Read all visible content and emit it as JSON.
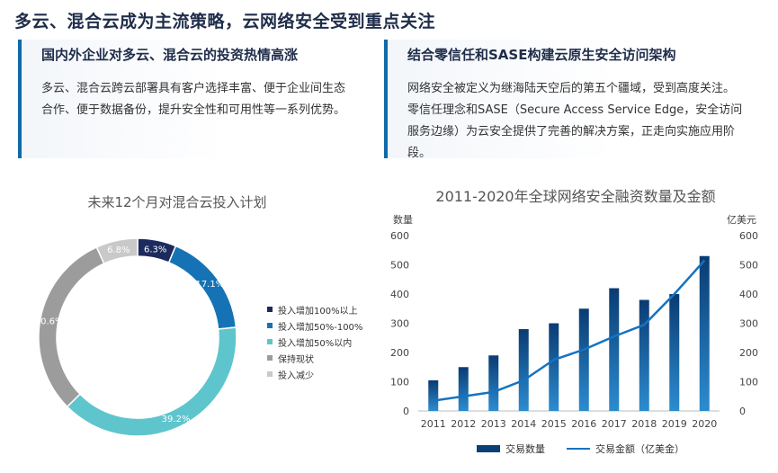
{
  "page_title": "多云、混合云成为主流策略，云网络安全受到重点关注",
  "left_panel": {
    "heading": "国内外企业对多云、混合云的投资热情高涨",
    "body": "多云、混合云跨云部署具有客户选择丰富、便于企业间生态合作、便于数据备份，提升安全性和可用性等一系列优势。"
  },
  "right_panel": {
    "heading": "结合零信任和SASE构建云原生安全访问架构",
    "body": "网络安全被定义为继海陆天空后的第五个疆域，受到高度关注。零信任理念和SASE（Secure Access Service Edge，安全访问服务边缘）为云安全提供了完善的解决方案，正走向实施应用阶段。"
  },
  "chart_data": [
    {
      "type": "pie",
      "title": "未来12个月对混合云投入计划",
      "donut": true,
      "legend_position": "right",
      "slices": [
        {
          "label": "投入增加100%以上",
          "value": 6.3,
          "display": "6.3%",
          "color": "#1c2a5e"
        },
        {
          "label": "投入增加50%-100%",
          "value": 17.1,
          "display": "17.1%",
          "color": "#1573b5"
        },
        {
          "label": "投入增加50%以内",
          "value": 39.2,
          "display": "39.2%",
          "color": "#5ec5cd"
        },
        {
          "label": "保持现状",
          "value": 30.6,
          "display": "30.6%",
          "color": "#9c9c9c"
        },
        {
          "label": "投入减少",
          "value": 6.8,
          "display": "6.8%",
          "color": "#c9c9c9"
        }
      ]
    },
    {
      "type": "bar",
      "title": "2011-2020年全球网络安全融资数量及金额",
      "ylabel_left": "数量",
      "ylabel_right": "亿美元",
      "ylim": [
        0,
        600
      ],
      "ylim_right": [
        0,
        600
      ],
      "yticks": [
        0,
        100,
        200,
        300,
        400,
        500,
        600
      ],
      "categories": [
        "2011",
        "2012",
        "2013",
        "2014",
        "2015",
        "2016",
        "2017",
        "2018",
        "2019",
        "2020"
      ],
      "series": [
        {
          "name": "交易数量",
          "kind": "bar",
          "axis": "left",
          "color": "#0b3f78",
          "values": [
            105,
            150,
            190,
            280,
            300,
            350,
            420,
            380,
            400,
            530
          ]
        },
        {
          "name": "交易金额（亿美金）",
          "kind": "line",
          "axis": "right",
          "color": "#1573c2",
          "values": [
            35,
            50,
            65,
            105,
            175,
            210,
            255,
            295,
            400,
            515
          ]
        }
      ],
      "legend_position": "bottom",
      "grid": false
    }
  ]
}
